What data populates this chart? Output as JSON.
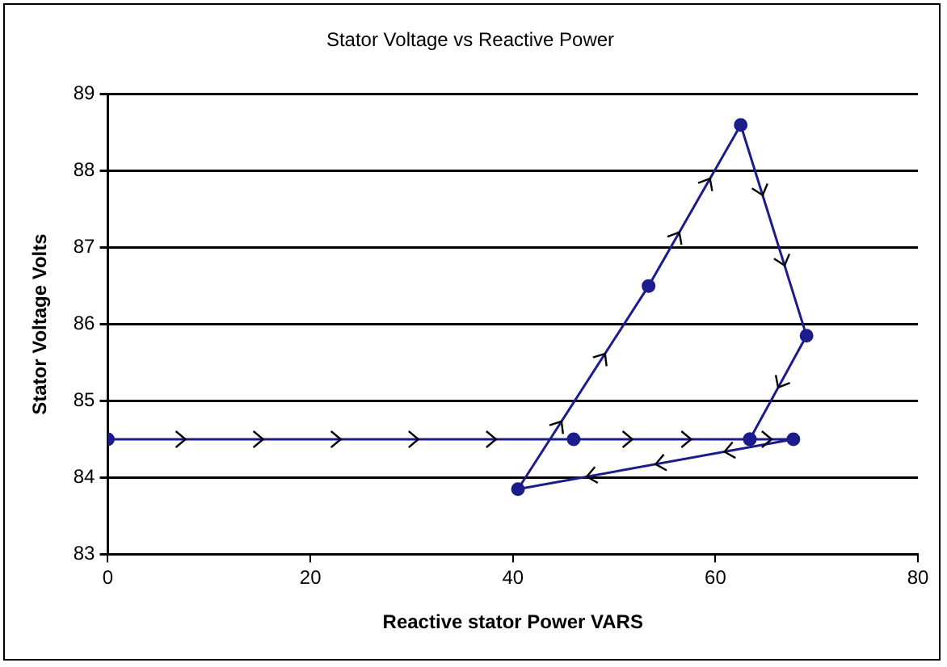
{
  "chart_data": {
    "type": "line",
    "title": "Stator Voltage vs Reactive Power",
    "xlabel": "Reactive stator Power VARS",
    "ylabel": "Stator Voltage Volts",
    "x": [
      0,
      46,
      63.4,
      67.7,
      40.5,
      53.4,
      62.5,
      69,
      63.4
    ],
    "series": [
      {
        "color": "#1c1c8c",
        "values": [
          84.5,
          84.5,
          84.5,
          84.5,
          83.85,
          86.5,
          88.6,
          85.85,
          84.5
        ]
      }
    ],
    "xlim": [
      0,
      80
    ],
    "xticks": [
      0,
      20,
      40,
      60,
      80
    ],
    "ylim": [
      83,
      89
    ],
    "yticks": [
      83,
      84,
      85,
      86,
      87,
      88,
      89
    ],
    "grid": "y",
    "legend": false,
    "marker": "circle",
    "line_style": "solid"
  }
}
